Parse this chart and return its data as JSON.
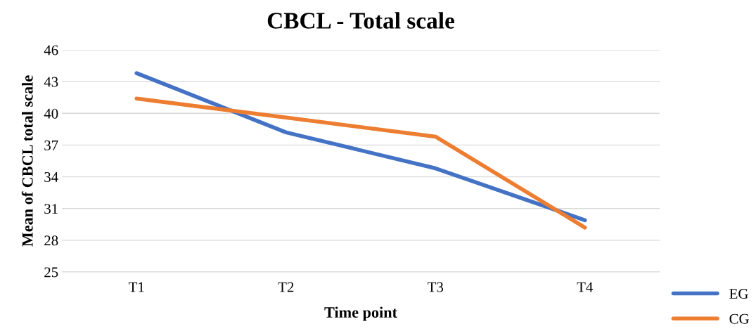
{
  "chart_data": {
    "type": "line",
    "title": "CBCL - Total scale",
    "xlabel": "Time point",
    "ylabel": "Mean of CBCL total scale",
    "categories": [
      "T1",
      "T2",
      "T3",
      "T4"
    ],
    "series": [
      {
        "name": "EG",
        "color": "#4472c4",
        "values": [
          43.8,
          38.2,
          34.8,
          29.9
        ]
      },
      {
        "name": "CG",
        "color": "#ed7d31",
        "values": [
          41.4,
          39.6,
          37.8,
          29.2
        ]
      }
    ],
    "ylim": [
      25,
      46
    ],
    "yticks": [
      25,
      28,
      31,
      34,
      37,
      40,
      43,
      46
    ],
    "grid": "y",
    "legend": "bottom right",
    "marker": "none",
    "line_style": "solid"
  }
}
